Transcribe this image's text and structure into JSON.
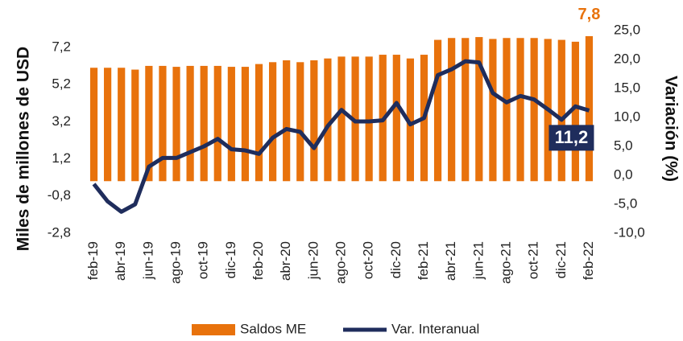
{
  "chart_data": {
    "type": "bar_line",
    "y_label": "Miles de millones de USD",
    "y2_label": "Variación (%)",
    "categories": [
      "feb-19",
      null,
      "abr-19",
      null,
      "jun-19",
      null,
      "ago-19",
      null,
      "oct-19",
      null,
      "dic-19",
      null,
      "feb-20",
      null,
      "abr-20",
      null,
      "jun-20",
      null,
      "ago-20",
      null,
      "oct-20",
      null,
      "dic-20",
      null,
      "feb-21",
      null,
      "abr-21",
      null,
      "jun-21",
      null,
      "ago-21",
      null,
      "oct-21",
      null,
      "dic-21",
      null,
      "feb-22"
    ],
    "series": [
      {
        "name": "Saldos ME",
        "type": "bar",
        "color": "#e8720c",
        "values": [
          6.1,
          6.1,
          6.1,
          6.0,
          6.2,
          6.2,
          6.15,
          6.2,
          6.2,
          6.2,
          6.15,
          6.15,
          6.3,
          6.4,
          6.5,
          6.4,
          6.5,
          6.6,
          6.7,
          6.7,
          6.7,
          6.8,
          6.8,
          6.6,
          6.8,
          7.6,
          7.7,
          7.7,
          7.75,
          7.65,
          7.7,
          7.7,
          7.7,
          7.65,
          7.6,
          7.5,
          7.8
        ],
        "value_labels": [
          null,
          null,
          null,
          null,
          null,
          null,
          null,
          null,
          null,
          null,
          null,
          null,
          null,
          null,
          null,
          null,
          null,
          null,
          null,
          null,
          null,
          null,
          null,
          null,
          null,
          null,
          null,
          null,
          null,
          null,
          null,
          null,
          null,
          null,
          null,
          null,
          "7,8"
        ]
      },
      {
        "name": "Var. Interanual",
        "type": "line",
        "axis": "y2",
        "color": "#1f2d5c",
        "values": [
          -1.5,
          -4.5,
          -6.3,
          -5.0,
          1.5,
          3.0,
          3.0,
          4.0,
          5.0,
          6.3,
          4.5,
          4.3,
          3.7,
          6.5,
          8.0,
          7.5,
          4.7,
          8.5,
          11.3,
          9.3,
          9.3,
          9.5,
          12.5,
          8.8,
          9.9,
          17.3,
          18.3,
          19.7,
          19.5,
          14.2,
          12.6,
          13.7,
          13.1,
          11.4,
          9.6,
          11.9,
          11.2
        ],
        "value_labels": [
          null,
          null,
          null,
          null,
          null,
          null,
          null,
          null,
          null,
          null,
          null,
          null,
          null,
          null,
          null,
          null,
          null,
          null,
          null,
          null,
          null,
          null,
          null,
          null,
          null,
          null,
          null,
          null,
          null,
          null,
          null,
          null,
          null,
          null,
          null,
          null,
          "11,2"
        ]
      }
    ],
    "ylim": [
      -2.8,
      8.1
    ],
    "yticks": [
      {
        "value": -2.8,
        "label": "-2,8"
      },
      {
        "value": -0.8,
        "label": "-0,8"
      },
      {
        "value": 1.2,
        "label": "1,2"
      },
      {
        "value": 3.2,
        "label": "3,2"
      },
      {
        "value": 5.2,
        "label": "5,2"
      },
      {
        "value": 7.2,
        "label": "7,2"
      }
    ],
    "y2lim": [
      -10,
      25
    ],
    "y2ticks": [
      {
        "value": -10,
        "label": "-10,0"
      },
      {
        "value": -5,
        "label": "-5,0"
      },
      {
        "value": 0,
        "label": "0,0"
      },
      {
        "value": 5,
        "label": "5,0"
      },
      {
        "value": 10,
        "label": "10,0"
      },
      {
        "value": 15,
        "label": "15,0"
      },
      {
        "value": 20,
        "label": "20,0"
      },
      {
        "value": 25,
        "label": "25,0"
      }
    ],
    "legend": "bottom"
  }
}
